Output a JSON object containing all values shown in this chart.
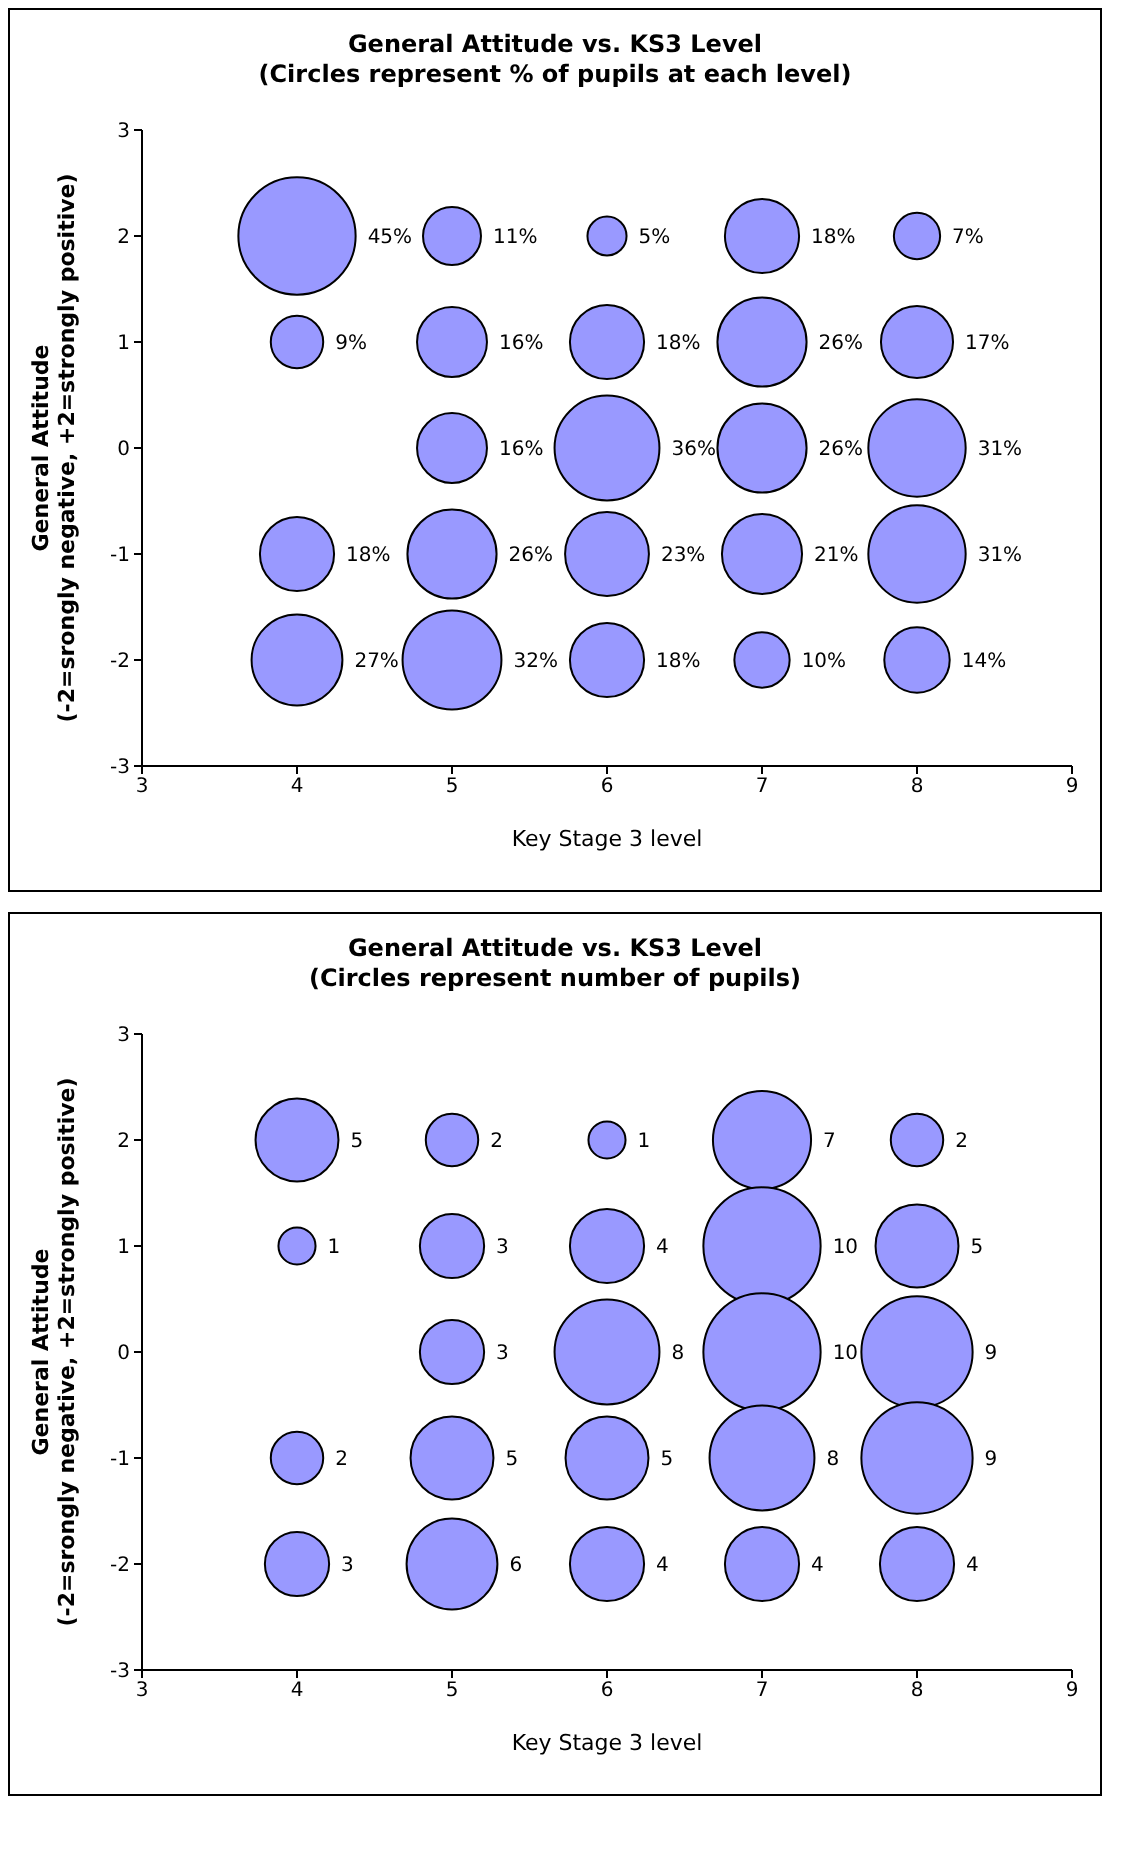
{
  "chart_data": [
    {
      "type": "bubble",
      "title": "General Attitude vs. KS3 Level",
      "subtitle": "(Circles represent % of pupils at each level)",
      "xlabel": "Key Stage 3 level",
      "ylabel": "General Attitude\n(-2=srongly negative, +2=strongly positive)",
      "x": [
        4,
        5,
        6,
        7,
        8,
        4,
        5,
        6,
        7,
        8,
        5,
        6,
        7,
        8,
        4,
        5,
        6,
        7,
        8,
        4,
        5,
        6,
        7,
        8
      ],
      "values": [
        2,
        2,
        2,
        2,
        2,
        1,
        1,
        1,
        1,
        1,
        0,
        0,
        0,
        0,
        -1,
        -1,
        -1,
        -1,
        -1,
        -2,
        -2,
        -2,
        -2,
        -2
      ],
      "sizes": [
        45,
        11,
        5,
        18,
        7,
        9,
        16,
        18,
        26,
        17,
        16,
        36,
        26,
        31,
        18,
        26,
        23,
        21,
        31,
        27,
        32,
        18,
        10,
        14
      ],
      "value_labels": [
        "45%",
        "11%",
        "5%",
        "18%",
        "7%",
        "9%",
        "16%",
        "18%",
        "26%",
        "17%",
        "16%",
        "36%",
        "26%",
        "31%",
        "18%",
        "26%",
        "23%",
        "21%",
        "31%",
        "27%",
        "32%",
        "18%",
        "10%",
        "14%"
      ],
      "color": "#9999ff",
      "xlim": [
        3,
        9
      ],
      "xticks": [
        3,
        4,
        5,
        6,
        7,
        8,
        9
      ],
      "ylim": [
        -3,
        3
      ],
      "yticks": [
        -3,
        -2,
        -1,
        0,
        1,
        2,
        3
      ],
      "grid": false,
      "legend": false
    },
    {
      "type": "bubble",
      "title": "General Attitude vs. KS3 Level",
      "subtitle": "(Circles represent number of pupils)",
      "xlabel": "Key Stage 3 level",
      "ylabel": "General Attitude\n(-2=srongly negative, +2=strongly positive)",
      "x": [
        4,
        5,
        6,
        7,
        8,
        4,
        5,
        6,
        7,
        8,
        5,
        6,
        7,
        8,
        4,
        5,
        6,
        7,
        8,
        4,
        5,
        6,
        7,
        8
      ],
      "values": [
        2,
        2,
        2,
        2,
        2,
        1,
        1,
        1,
        1,
        1,
        0,
        0,
        0,
        0,
        -1,
        -1,
        -1,
        -1,
        -1,
        -2,
        -2,
        -2,
        -2,
        -2
      ],
      "sizes": [
        5,
        2,
        1,
        7,
        2,
        1,
        3,
        4,
        10,
        5,
        3,
        8,
        10,
        9,
        2,
        5,
        5,
        8,
        9,
        3,
        6,
        4,
        4,
        4
      ],
      "value_labels": [
        "5",
        "2",
        "1",
        "7",
        "2",
        "1",
        "3",
        "4",
        "10",
        "5",
        "3",
        "8",
        "10",
        "9",
        "2",
        "5",
        "5",
        "8",
        "9",
        "3",
        "6",
        "4",
        "4",
        "4"
      ],
      "color": "#9999ff",
      "xlim": [
        3,
        9
      ],
      "xticks": [
        3,
        4,
        5,
        6,
        7,
        8,
        9
      ],
      "ylim": [
        -3,
        3
      ],
      "yticks": [
        -3,
        -2,
        -1,
        0,
        1,
        2,
        3
      ],
      "grid": false,
      "legend": false
    }
  ]
}
